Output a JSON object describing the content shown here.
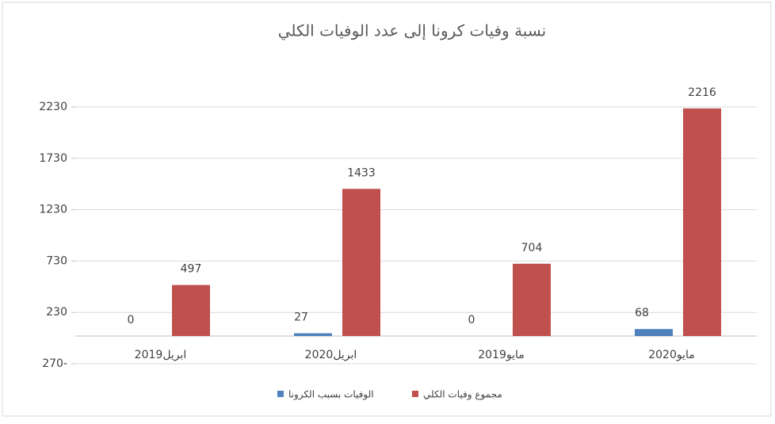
{
  "chart_data": {
    "type": "bar",
    "title": "نسبة وفيات كرونا إلى عدد الوفيات الكلي",
    "categories": [
      "ابريل2019",
      "ابريل2020",
      "مايو2019",
      "مايو2020"
    ],
    "series": [
      {
        "name": "الوفيات بسبب الكرونا",
        "color": "#4f81bd",
        "values": [
          0,
          27,
          0,
          68
        ]
      },
      {
        "name": "مجموع وفيات الكلي",
        "color": "#c0504d",
        "values": [
          497,
          1433,
          704,
          2216
        ]
      }
    ],
    "ylim": [
      -270,
      2230
    ],
    "yticks": [
      {
        "value": -270,
        "label": "270-"
      },
      230,
      730,
      1230,
      1730,
      2230
    ],
    "grid": true,
    "legend": "bottom"
  }
}
